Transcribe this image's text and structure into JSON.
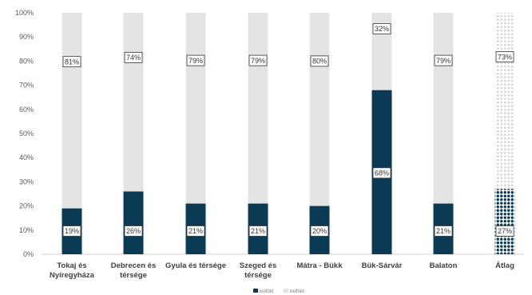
{
  "chart_data": {
    "type": "bar",
    "stacked": true,
    "percent": true,
    "categories": [
      "Tokaj és Nyíregyháza",
      "Debrecen és térsége",
      "Gyula és térsége",
      "Szeged és térsége",
      "Mátra - Bükk",
      "Bük-Sárvár",
      "Balaton",
      "Átlag"
    ],
    "category_lines": [
      [
        "Tokaj és",
        "Nyíregyháza"
      ],
      [
        "Debrecen és",
        "térsége"
      ],
      [
        "Gyula és térsége"
      ],
      [
        "Szeged és",
        "térsége"
      ],
      [
        "Mátra - Bükk"
      ],
      [
        "Bük-Sárvár"
      ],
      [
        "Balaton"
      ],
      [
        "Átlag"
      ]
    ],
    "series": [
      {
        "name": "külföld",
        "values": [
          19,
          26,
          21,
          21,
          20,
          68,
          21,
          27
        ],
        "labels": [
          "19%",
          "26%",
          "21%",
          "21%",
          "20%",
          "68%",
          "21%",
          "27%"
        ],
        "color": "#0b3a55"
      },
      {
        "name": "belföld",
        "values": [
          81,
          74,
          79,
          79,
          80,
          32,
          79,
          73
        ],
        "labels": [
          "81%",
          "74%",
          "79%",
          "79%",
          "80%",
          "32%",
          "79%",
          "73%"
        ],
        "color": "#e4e4e4"
      }
    ],
    "ylim": [
      0,
      100
    ],
    "yticks": [
      "0%",
      "10%",
      "20%",
      "30%",
      "40%",
      "50%",
      "60%",
      "70%",
      "80%",
      "90%",
      "100%"
    ],
    "pattern_category": "Átlag",
    "legend_position": "bottom",
    "grid": false,
    "title": "",
    "xlabel": "",
    "ylabel": ""
  }
}
